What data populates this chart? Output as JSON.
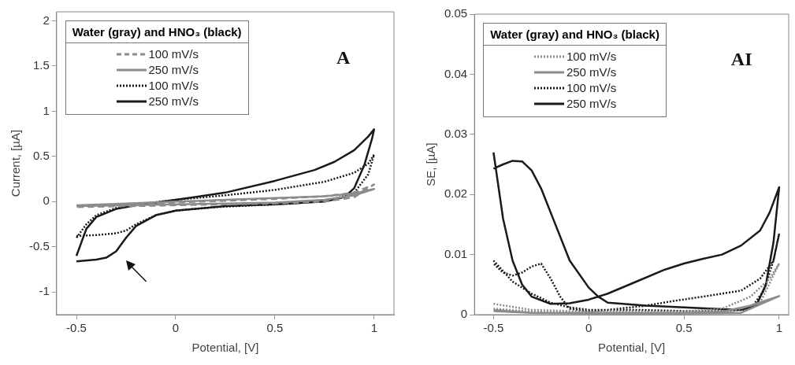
{
  "chart_data": [
    {
      "type": "line",
      "xlabel": "Potential, [V]",
      "ylabel": "Current, [µA]",
      "legend_title": "Water (gray) and HNO₃ (black)",
      "legend": "top left",
      "marker": "none",
      "annotations": [
        "A"
      ],
      "xlim": [
        -0.6,
        1.1
      ],
      "xticks": [
        -0.5,
        0,
        0.5,
        1
      ],
      "ylim": [
        -1.25,
        2.1
      ],
      "yticks": [
        -1,
        -0.5,
        0,
        0.5,
        1,
        1.5,
        2
      ],
      "series": [
        {
          "name": "100 mV/s",
          "color": "#8c8c8c",
          "line_style": "dashed",
          "x": [
            -0.5,
            -0.25,
            0,
            0.25,
            0.5,
            0.75,
            0.9,
            1.0,
            0.9,
            0.75,
            0.5,
            0.25,
            0,
            -0.25,
            -0.5
          ],
          "values": [
            -0.05,
            -0.03,
            -0.01,
            0.01,
            0.03,
            0.06,
            0.1,
            0.19,
            0.05,
            0.0,
            -0.02,
            -0.03,
            -0.04,
            -0.05,
            -0.06
          ]
        },
        {
          "name": "250 mV/s",
          "color": "#8c8c8c",
          "line_style": "solid",
          "x": [
            -0.5,
            -0.25,
            0,
            0.25,
            0.5,
            0.75,
            0.9,
            1.0,
            0.9,
            0.75,
            0.5,
            0.25,
            0,
            -0.25,
            -0.5
          ],
          "values": [
            -0.04,
            -0.02,
            0.0,
            0.02,
            0.04,
            0.06,
            0.09,
            0.14,
            0.07,
            0.02,
            -0.01,
            -0.02,
            -0.03,
            -0.04,
            -0.05
          ]
        },
        {
          "name": "100 mV/s",
          "color": "#1a1a1a",
          "line_style": "dotted",
          "x": [
            -0.5,
            -0.45,
            -0.4,
            -0.3,
            -0.2,
            0,
            0.25,
            0.5,
            0.75,
            0.9,
            0.97,
            1.0,
            0.97,
            0.9,
            0.8,
            0.6,
            0.4,
            0.2,
            0,
            -0.1,
            -0.2,
            -0.25,
            -0.3,
            -0.4,
            -0.5
          ],
          "values": [
            -0.4,
            -0.25,
            -0.15,
            -0.07,
            -0.03,
            0.02,
            0.07,
            0.13,
            0.22,
            0.32,
            0.42,
            0.52,
            0.3,
            0.1,
            0.03,
            -0.02,
            -0.04,
            -0.06,
            -0.1,
            -0.15,
            -0.25,
            -0.32,
            -0.35,
            -0.37,
            -0.38
          ]
        },
        {
          "name": "250 mV/s",
          "color": "#1a1a1a",
          "line_style": "solid",
          "x": [
            -0.5,
            -0.45,
            -0.4,
            -0.3,
            -0.2,
            0,
            0.25,
            0.5,
            0.7,
            0.8,
            0.9,
            0.97,
            1.0,
            0.99,
            0.95,
            0.9,
            0.85,
            0.75,
            0.5,
            0.25,
            0,
            -0.1,
            -0.2,
            -0.25,
            -0.3,
            -0.35,
            -0.4,
            -0.5
          ],
          "values": [
            -0.6,
            -0.3,
            -0.17,
            -0.08,
            -0.04,
            0.02,
            0.1,
            0.23,
            0.35,
            0.44,
            0.57,
            0.72,
            0.8,
            0.7,
            0.4,
            0.15,
            0.05,
            0.0,
            -0.03,
            -0.05,
            -0.1,
            -0.15,
            -0.27,
            -0.4,
            -0.55,
            -0.62,
            -0.64,
            -0.66
          ]
        }
      ]
    },
    {
      "type": "line",
      "xlabel": "Potential, [V]",
      "ylabel": "SE, [µA]",
      "legend_title": "Water (gray) and HNO₃ (black)",
      "legend": "top left",
      "marker": "none",
      "annotations": [
        "AI"
      ],
      "xlim": [
        -0.6,
        1.05
      ],
      "xticks": [
        -0.5,
        0,
        0.5,
        1
      ],
      "ylim": [
        0,
        0.05
      ],
      "yticks": [
        0,
        0.01,
        0.02,
        0.03,
        0.04,
        0.05
      ],
      "series": [
        {
          "name": "100 mV/s",
          "color": "#8c8c8c",
          "line_style": "dotted",
          "x": [
            -0.5,
            -0.3,
            0,
            0.5,
            0.7,
            0.85,
            0.95,
            1.0,
            0.9,
            0.75,
            0.5,
            0,
            -0.3,
            -0.5
          ],
          "values": [
            0.0018,
            0.0008,
            0.0005,
            0.0005,
            0.001,
            0.003,
            0.006,
            0.0085,
            0.002,
            0.0005,
            0.0003,
            0.0003,
            0.0005,
            0.001
          ]
        },
        {
          "name": "250 mV/s",
          "color": "#8c8c8c",
          "line_style": "solid",
          "x": [
            -0.5,
            -0.3,
            0,
            0.5,
            0.7,
            0.85,
            1.0,
            0.8,
            0.5,
            0,
            -0.3,
            -0.5
          ],
          "values": [
            0.0008,
            0.0003,
            0.0003,
            0.0003,
            0.0005,
            0.0015,
            0.0031,
            0.0003,
            0.0002,
            0.0002,
            0.0003,
            0.0006
          ]
        },
        {
          "name": "100 mV/s",
          "color": "#1a1a1a",
          "line_style": "dotted",
          "x": [
            -0.5,
            -0.4,
            -0.3,
            -0.2,
            -0.1,
            0,
            0.25,
            0.5,
            0.75,
            0.85,
            0.92,
            0.97,
            1.0,
            0.97,
            0.9,
            0.8,
            0.6,
            0.45,
            0.3,
            0.1,
            0,
            -0.1,
            -0.15,
            -0.2,
            -0.25,
            -0.3,
            -0.35,
            -0.4,
            -0.45,
            -0.5
          ],
          "values": [
            0.009,
            0.0055,
            0.0035,
            0.002,
            0.0012,
            0.0008,
            0.0008,
            0.0006,
            0.0006,
            0.001,
            0.004,
            0.009,
            0.0135,
            0.009,
            0.006,
            0.004,
            0.003,
            0.0023,
            0.0015,
            0.0008,
            0.0005,
            0.001,
            0.003,
            0.006,
            0.0085,
            0.008,
            0.007,
            0.0065,
            0.007,
            0.0085
          ]
        },
        {
          "name": "250 mV/s",
          "color": "#1a1a1a",
          "line_style": "solid",
          "x": [
            -0.5,
            -0.45,
            -0.4,
            -0.35,
            -0.3,
            -0.2,
            -0.1,
            0,
            0.1,
            0.25,
            0.4,
            0.5,
            0.6,
            0.7,
            0.8,
            0.9,
            0.95,
            1.0,
            0.97,
            0.93,
            0.88,
            0.8,
            0.7,
            0.5,
            0.3,
            0.1,
            0.05,
            0,
            -0.1,
            -0.2,
            -0.25,
            -0.3,
            -0.35,
            -0.4,
            -0.45,
            -0.5
          ],
          "values": [
            0.027,
            0.016,
            0.009,
            0.005,
            0.003,
            0.0018,
            0.0019,
            0.0025,
            0.0035,
            0.0055,
            0.0075,
            0.0085,
            0.0093,
            0.01,
            0.0115,
            0.014,
            0.017,
            0.0212,
            0.012,
            0.005,
            0.0015,
            0.0008,
            0.0009,
            0.0012,
            0.0015,
            0.002,
            0.003,
            0.0045,
            0.009,
            0.017,
            0.021,
            0.024,
            0.0255,
            0.0256,
            0.025,
            0.0243
          ]
        }
      ]
    }
  ]
}
